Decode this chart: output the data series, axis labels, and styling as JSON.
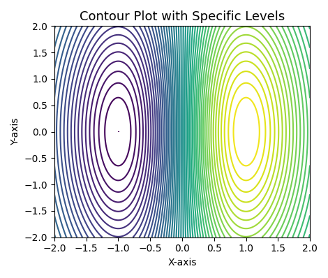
{
  "title": "Contour Plot with Specific Levels",
  "xlabel": "X-axis",
  "ylabel": "Y-axis",
  "xlim": [
    -2,
    2
  ],
  "ylim": [
    -2,
    2
  ],
  "x_range": [
    -2,
    2
  ],
  "y_range": [
    -2,
    2
  ],
  "n_grid": 500,
  "levels": 50,
  "cmap": "viridis",
  "figsize": [
    4.7,
    3.98
  ],
  "dpi": 100,
  "title_fontsize": 13,
  "label_fontsize": 10
}
